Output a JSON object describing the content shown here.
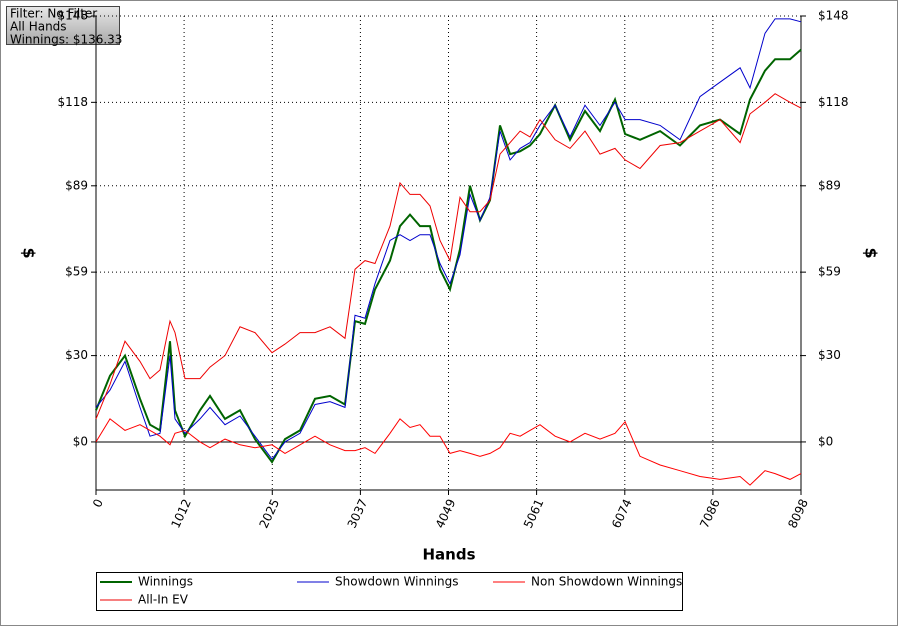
{
  "info_box": [
    "Filter: No Filter",
    "All Hands",
    "Winnings: $136.33"
  ],
  "chart_data": {
    "type": "line",
    "x_label": "Hands",
    "y_label": "$",
    "xlim": [
      0,
      8098
    ],
    "xticks": [
      0,
      1012,
      2025,
      3037,
      4049,
      5061,
      6074,
      7086,
      8098
    ],
    "ylim": [
      -16.7,
      148
    ],
    "yticks": [
      {
        "value": 0,
        "label": "$0"
      },
      {
        "value": 30,
        "label": "$30"
      },
      {
        "value": 59,
        "label": "$59"
      },
      {
        "value": 89,
        "label": "$89"
      },
      {
        "value": 118,
        "label": "$118"
      },
      {
        "value": 148,
        "label": "$148"
      }
    ],
    "grid": true,
    "x": [
      0,
      161,
      333,
      505,
      620,
      735,
      850,
      907,
      1022,
      1195,
      1310,
      1482,
      1654,
      1826,
      2022,
      2171,
      2343,
      2516,
      2688,
      2860,
      2975,
      3090,
      3205,
      3377,
      3492,
      3607,
      3722,
      3837,
      3951,
      4066,
      4181,
      4296,
      4411,
      4526,
      4641,
      4756,
      4871,
      4985,
      5100,
      5273,
      5445,
      5617,
      5789,
      5962,
      6077,
      6249,
      6479,
      6708,
      6938,
      7168,
      7398,
      7512,
      7685,
      7800,
      7972,
      8098
    ],
    "series": [
      {
        "name": "Winnings",
        "color": "#006400",
        "values": [
          11,
          23,
          30,
          15,
          6,
          4,
          35,
          11,
          2,
          11,
          16,
          8,
          11,
          1,
          -7,
          1,
          4,
          15,
          16,
          13,
          42,
          41,
          53,
          63,
          75,
          79,
          75,
          75,
          60,
          53,
          67,
          89,
          77,
          84,
          110,
          100,
          101,
          103,
          107,
          117,
          105,
          115,
          108,
          119,
          107,
          105,
          108,
          103,
          110,
          112,
          107,
          119,
          129,
          133,
          133,
          136.33
        ]
      },
      {
        "name": "Showdown Winnings",
        "color": "#0000cc",
        "values": [
          12,
          18,
          28,
          12,
          2,
          3,
          30,
          8,
          3,
          8,
          12,
          6,
          9,
          2,
          -6,
          0,
          3,
          13,
          14,
          12,
          44,
          43,
          55,
          70,
          72,
          70,
          72,
          72,
          62,
          55,
          65,
          86,
          77,
          85,
          108,
          98,
          102,
          104,
          110,
          117,
          106,
          117,
          110,
          118,
          112,
          112,
          110,
          105,
          120,
          125,
          130,
          123,
          142,
          147,
          147,
          146
        ]
      },
      {
        "name": "Non Showdown Winnings",
        "color": "#ff0000",
        "values": [
          0,
          8,
          4,
          6,
          4,
          2,
          -1,
          3,
          4,
          0,
          -2,
          1,
          -1,
          -2,
          -1,
          -4,
          -1,
          2,
          -1,
          -3,
          -3,
          -2,
          -4,
          3,
          8,
          5,
          6,
          2,
          2,
          -4,
          -3,
          -4,
          -5,
          -4,
          -2,
          3,
          2,
          4,
          6,
          2,
          0,
          3,
          1,
          3,
          7,
          -5,
          -8,
          -10,
          -12,
          -13,
          -12,
          -15,
          -10,
          -11,
          -13,
          -11
        ]
      },
      {
        "name": "All-In EV",
        "color": "#ee0000",
        "values": [
          8,
          20,
          35,
          28,
          22,
          25,
          42,
          38,
          22,
          22,
          26,
          30,
          40,
          38,
          31,
          34,
          38,
          38,
          40,
          36,
          60,
          63,
          62,
          75,
          90,
          86,
          86,
          82,
          70,
          63,
          85,
          80,
          80,
          84,
          100,
          104,
          108,
          106,
          112,
          105,
          102,
          108,
          100,
          102,
          98,
          95,
          103,
          104,
          108,
          112,
          104,
          114,
          118,
          121,
          118,
          116
        ]
      }
    ]
  }
}
